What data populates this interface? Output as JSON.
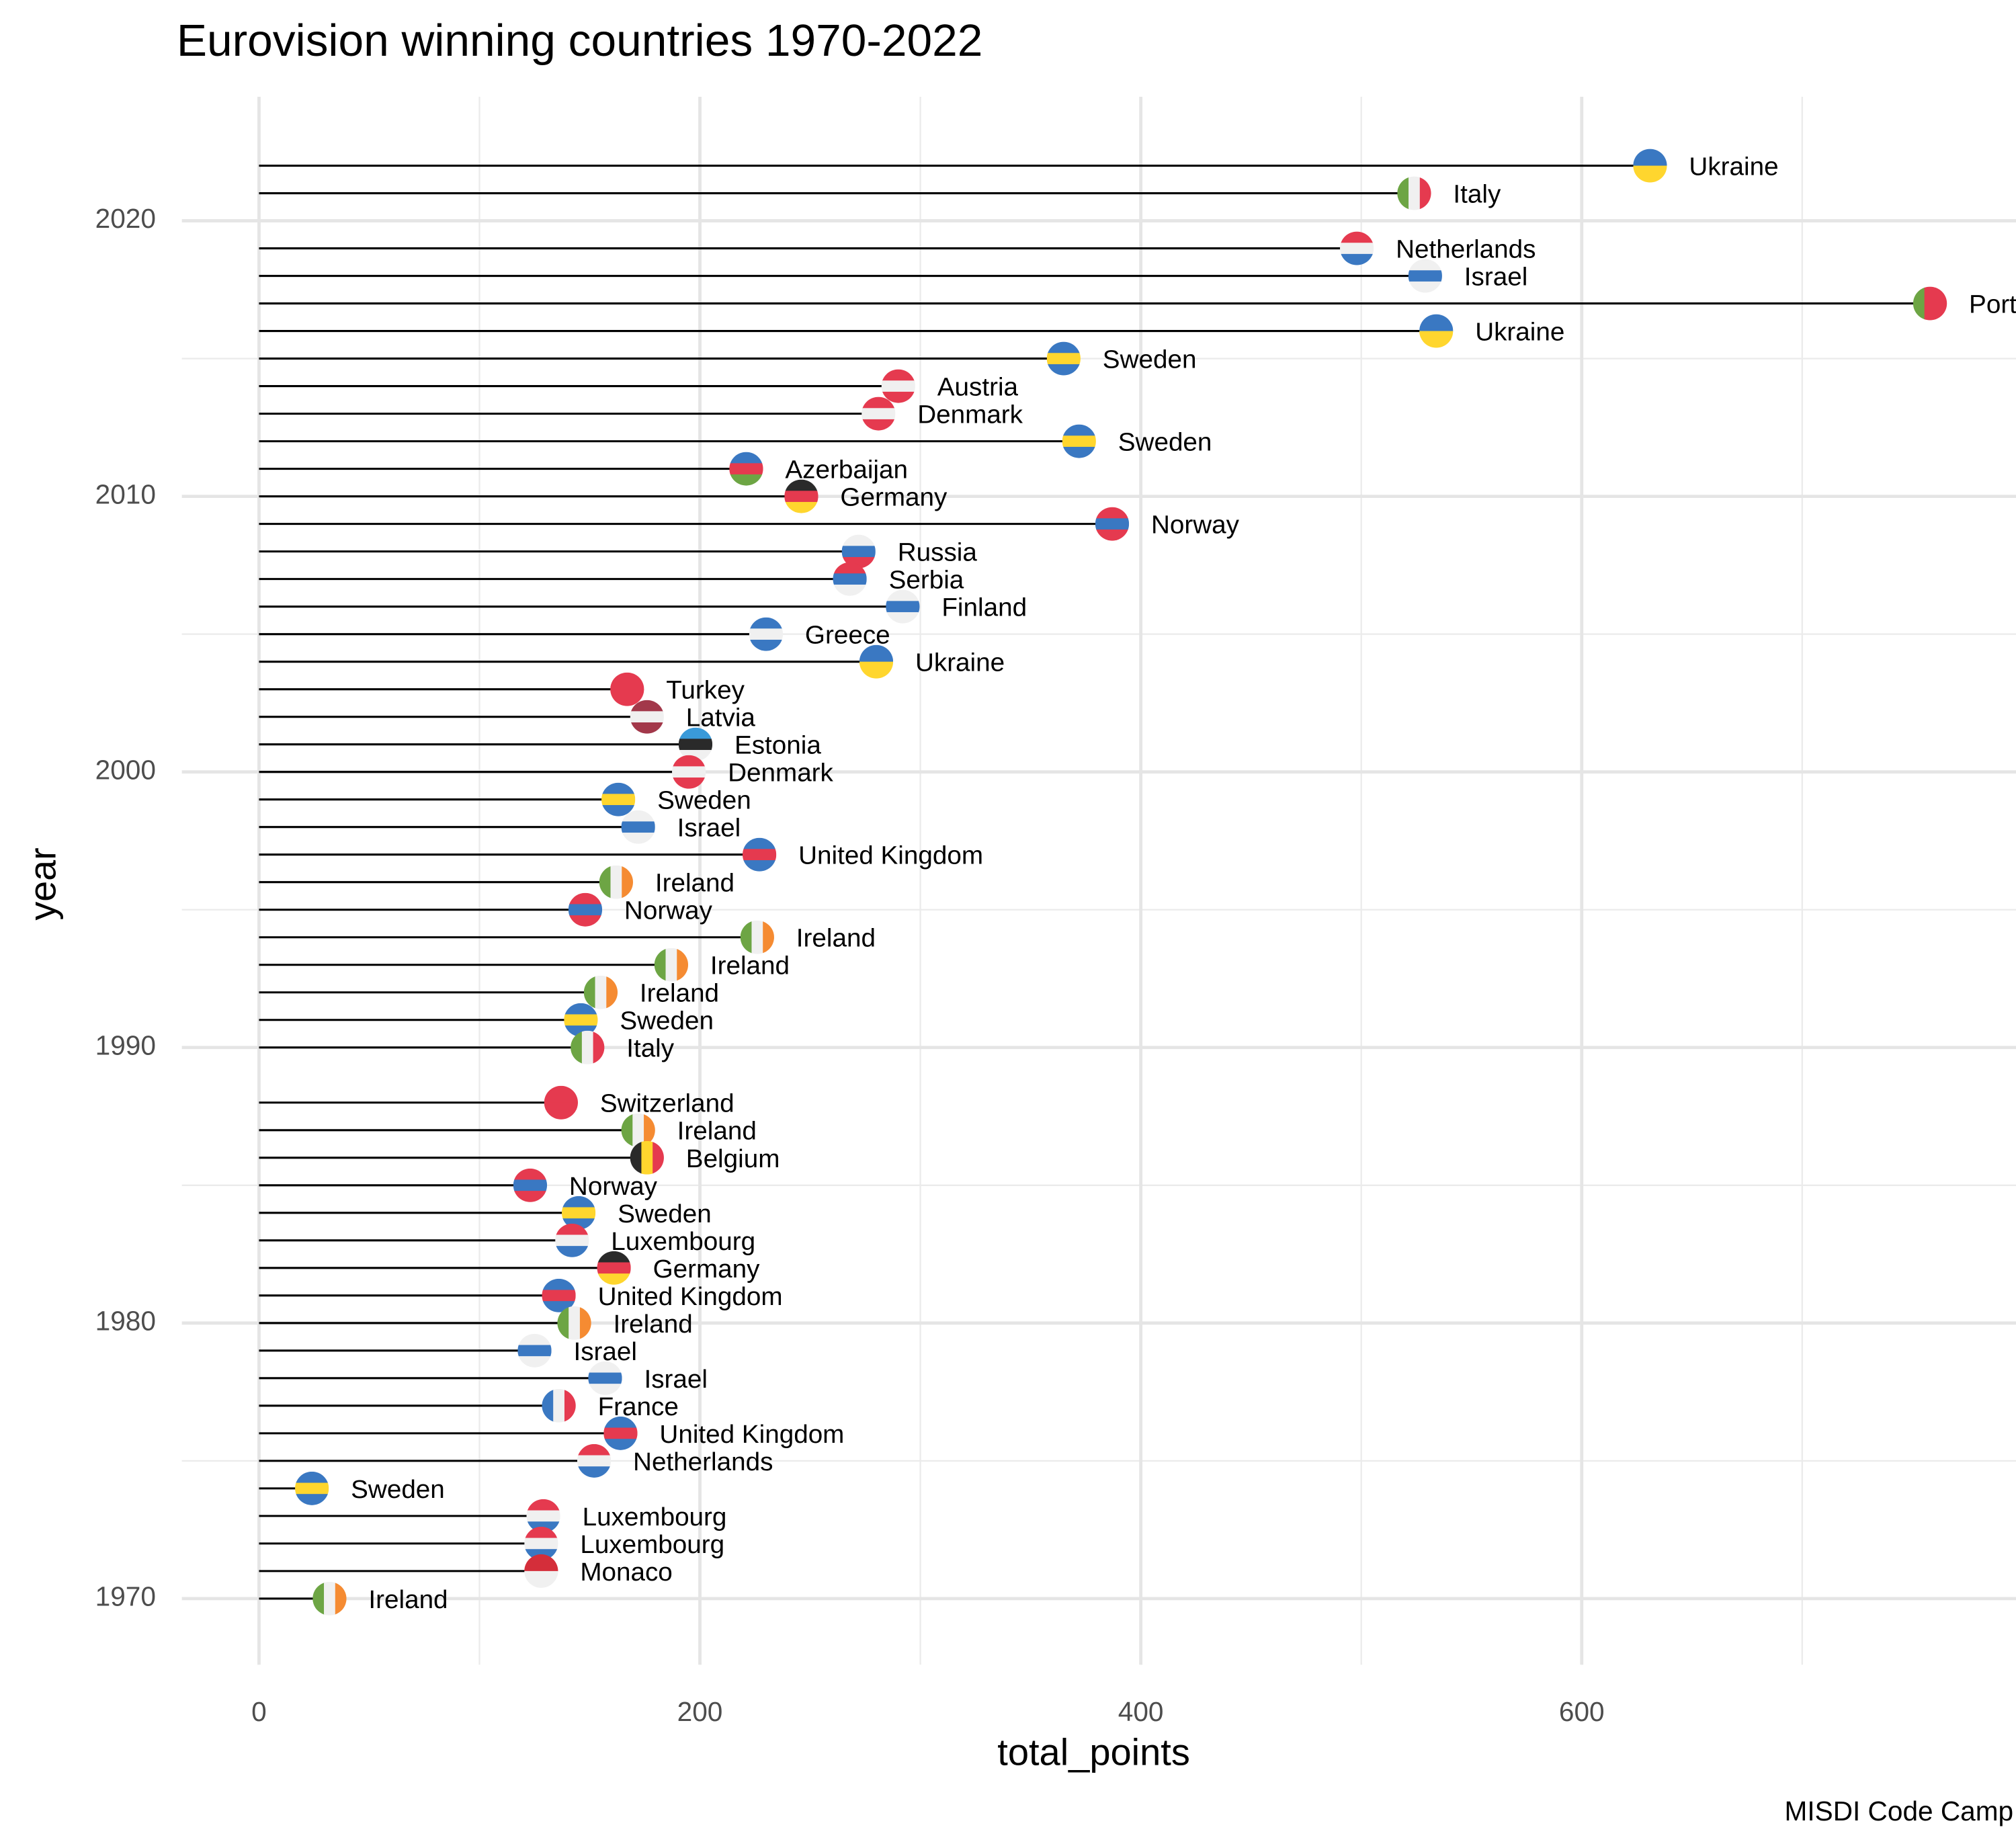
{
  "chart_data": {
    "type": "lollipop",
    "title": "Eurovision winning countries 1970-2022",
    "x_label": "total_points",
    "y_label": "year",
    "caption": "MISDI Code Camp",
    "xlim": [
      -35,
      797
    ],
    "xticks": [
      0,
      200,
      400,
      600
    ],
    "xminor": [
      100,
      300,
      500,
      700
    ],
    "ylim": [
      1967.6,
      2024.5
    ],
    "yticks": [
      1970,
      1980,
      1990,
      2000,
      2010,
      2020
    ],
    "yminor": [
      1975,
      1985,
      1995,
      2005,
      2015
    ],
    "grid": true,
    "line_color": "#000000",
    "y": [
      2022,
      2021,
      2019,
      2018,
      2017,
      2016,
      2015,
      2014,
      2013,
      2012,
      2011,
      2010,
      2009,
      2008,
      2007,
      2006,
      2005,
      2004,
      2003,
      2002,
      2001,
      2000,
      1999,
      1998,
      1997,
      1996,
      1995,
      1994,
      1993,
      1992,
      1991,
      1990,
      1988,
      1987,
      1986,
      1985,
      1984,
      1983,
      1982,
      1981,
      1980,
      1979,
      1978,
      1977,
      1976,
      1975,
      1974,
      1973,
      1972,
      1971,
      1970
    ],
    "values": [
      631,
      524,
      498,
      529,
      758,
      534,
      365,
      290,
      281,
      372,
      221,
      246,
      387,
      272,
      268,
      292,
      230,
      280,
      167,
      176,
      198,
      195,
      163,
      172,
      227,
      162,
      148,
      226,
      187,
      155,
      146,
      149,
      137,
      172,
      176,
      123,
      145,
      142,
      161,
      136,
      143,
      125,
      157,
      136,
      164,
      152,
      24,
      129,
      128,
      128,
      32
    ],
    "labels": [
      "Ukraine",
      "Italy",
      "Netherlands",
      "Israel",
      "Portugal",
      "Ukraine",
      "Sweden",
      "Austria",
      "Denmark",
      "Sweden",
      "Azerbaijan",
      "Germany",
      "Norway",
      "Russia",
      "Serbia",
      "Finland",
      "Greece",
      "Ukraine",
      "Turkey",
      "Latvia",
      "Estonia",
      "Denmark",
      "Sweden",
      "Israel",
      "United Kingdom",
      "Ireland",
      "Norway",
      "Ireland",
      "Ireland",
      "Ireland",
      "Sweden",
      "Italy",
      "Switzerland",
      "Ireland",
      "Belgium",
      "Norway",
      "Sweden",
      "Luxembourg",
      "Germany",
      "United Kingdom",
      "Ireland",
      "Israel",
      "Israel",
      "France",
      "United Kingdom",
      "Netherlands",
      "Sweden",
      "Luxembourg",
      "Luxembourg",
      "Monaco",
      "Ireland"
    ],
    "flags": [
      {
        "stripes": "h",
        "colors": [
          "#3a78c2",
          "#ffd62e"
        ]
      },
      {
        "stripes": "v",
        "colors": [
          "#6da544",
          "#f0f0f0",
          "#e53a4f"
        ]
      },
      {
        "stripes": "h",
        "colors": [
          "#e53a4f",
          "#f0f0f0",
          "#3a78c2"
        ]
      },
      {
        "stripes": "h",
        "colors": [
          "#f0f0f0",
          "#3a78c2",
          "#f0f0f0"
        ]
      },
      {
        "stripes": "v",
        "colors": [
          "#6da544",
          "#e53a4f",
          "#e53a4f"
        ]
      },
      {
        "stripes": "h",
        "colors": [
          "#3a78c2",
          "#ffd62e"
        ]
      },
      {
        "stripes": "h",
        "colors": [
          "#3a78c2",
          "#ffd62e",
          "#3a78c2"
        ]
      },
      {
        "stripes": "h",
        "colors": [
          "#e53a4f",
          "#f0f0f0",
          "#e53a4f"
        ]
      },
      {
        "stripes": "h",
        "colors": [
          "#e53a4f",
          "#f0f0f0",
          "#e53a4f"
        ]
      },
      {
        "stripes": "h",
        "colors": [
          "#3a78c2",
          "#ffd62e",
          "#3a78c2"
        ]
      },
      {
        "stripes": "h",
        "colors": [
          "#3a78c2",
          "#e53a4f",
          "#6da544"
        ]
      },
      {
        "stripes": "h",
        "colors": [
          "#2a2a2a",
          "#e53a4f",
          "#ffd62e"
        ]
      },
      {
        "stripes": "h",
        "colors": [
          "#e53a4f",
          "#3a78c2",
          "#e53a4f"
        ]
      },
      {
        "stripes": "h",
        "colors": [
          "#f0f0f0",
          "#3a78c2",
          "#e53a4f"
        ]
      },
      {
        "stripes": "h",
        "colors": [
          "#e53a4f",
          "#3a78c2",
          "#f0f0f0"
        ]
      },
      {
        "stripes": "h",
        "colors": [
          "#f0f0f0",
          "#3a78c2",
          "#f0f0f0"
        ]
      },
      {
        "stripes": "h",
        "colors": [
          "#3a78c2",
          "#f0f0f0",
          "#3a78c2"
        ]
      },
      {
        "stripes": "h",
        "colors": [
          "#3a78c2",
          "#ffd62e"
        ]
      },
      {
        "stripes": "h",
        "colors": [
          "#e53a4f",
          "#e53a4f"
        ]
      },
      {
        "stripes": "h",
        "colors": [
          "#a2384a",
          "#f0f0f0",
          "#a2384a"
        ]
      },
      {
        "stripes": "h",
        "colors": [
          "#3a9ad9",
          "#2a2a2a",
          "#f0f0f0"
        ]
      },
      {
        "stripes": "h",
        "colors": [
          "#e53a4f",
          "#f0f0f0",
          "#e53a4f"
        ]
      },
      {
        "stripes": "h",
        "colors": [
          "#3a78c2",
          "#ffd62e",
          "#3a78c2"
        ]
      },
      {
        "stripes": "h",
        "colors": [
          "#f0f0f0",
          "#3a78c2",
          "#f0f0f0"
        ]
      },
      {
        "stripes": "h",
        "colors": [
          "#3a78c2",
          "#e53a4f",
          "#3a78c2"
        ]
      },
      {
        "stripes": "v",
        "colors": [
          "#6da544",
          "#f0f0f0",
          "#f58b32"
        ]
      },
      {
        "stripes": "h",
        "colors": [
          "#e53a4f",
          "#3a78c2",
          "#e53a4f"
        ]
      },
      {
        "stripes": "v",
        "colors": [
          "#6da544",
          "#f0f0f0",
          "#f58b32"
        ]
      },
      {
        "stripes": "v",
        "colors": [
          "#6da544",
          "#f0f0f0",
          "#f58b32"
        ]
      },
      {
        "stripes": "v",
        "colors": [
          "#6da544",
          "#f0f0f0",
          "#f58b32"
        ]
      },
      {
        "stripes": "h",
        "colors": [
          "#3a78c2",
          "#ffd62e",
          "#3a78c2"
        ]
      },
      {
        "stripes": "v",
        "colors": [
          "#6da544",
          "#f0f0f0",
          "#e53a4f"
        ]
      },
      {
        "stripes": "h",
        "colors": [
          "#e53a4f",
          "#e53a4f"
        ]
      },
      {
        "stripes": "v",
        "colors": [
          "#6da544",
          "#f0f0f0",
          "#f58b32"
        ]
      },
      {
        "stripes": "v",
        "colors": [
          "#2a2a2a",
          "#ffd62e",
          "#e53a4f"
        ]
      },
      {
        "stripes": "h",
        "colors": [
          "#e53a4f",
          "#3a78c2",
          "#e53a4f"
        ]
      },
      {
        "stripes": "h",
        "colors": [
          "#3a78c2",
          "#ffd62e",
          "#3a78c2"
        ]
      },
      {
        "stripes": "h",
        "colors": [
          "#e53a4f",
          "#f0f0f0",
          "#3a78c2"
        ]
      },
      {
        "stripes": "h",
        "colors": [
          "#2a2a2a",
          "#e53a4f",
          "#ffd62e"
        ]
      },
      {
        "stripes": "h",
        "colors": [
          "#3a78c2",
          "#e53a4f",
          "#3a78c2"
        ]
      },
      {
        "stripes": "v",
        "colors": [
          "#6da544",
          "#f0f0f0",
          "#f58b32"
        ]
      },
      {
        "stripes": "h",
        "colors": [
          "#f0f0f0",
          "#3a78c2",
          "#f0f0f0"
        ]
      },
      {
        "stripes": "h",
        "colors": [
          "#f0f0f0",
          "#3a78c2",
          "#f0f0f0"
        ]
      },
      {
        "stripes": "v",
        "colors": [
          "#3a78c2",
          "#f0f0f0",
          "#e53a4f"
        ]
      },
      {
        "stripes": "h",
        "colors": [
          "#3a78c2",
          "#e53a4f",
          "#3a78c2"
        ]
      },
      {
        "stripes": "h",
        "colors": [
          "#e53a4f",
          "#f0f0f0",
          "#3a78c2"
        ]
      },
      {
        "stripes": "h",
        "colors": [
          "#3a78c2",
          "#ffd62e",
          "#3a78c2"
        ]
      },
      {
        "stripes": "h",
        "colors": [
          "#e53a4f",
          "#f0f0f0",
          "#3a78c2"
        ]
      },
      {
        "stripes": "h",
        "colors": [
          "#e53a4f",
          "#f0f0f0",
          "#3a78c2"
        ]
      },
      {
        "stripes": "h",
        "colors": [
          "#d42e3a",
          "#f0f0f0"
        ]
      },
      {
        "stripes": "v",
        "colors": [
          "#6da544",
          "#f0f0f0",
          "#f58b32"
        ]
      }
    ]
  }
}
